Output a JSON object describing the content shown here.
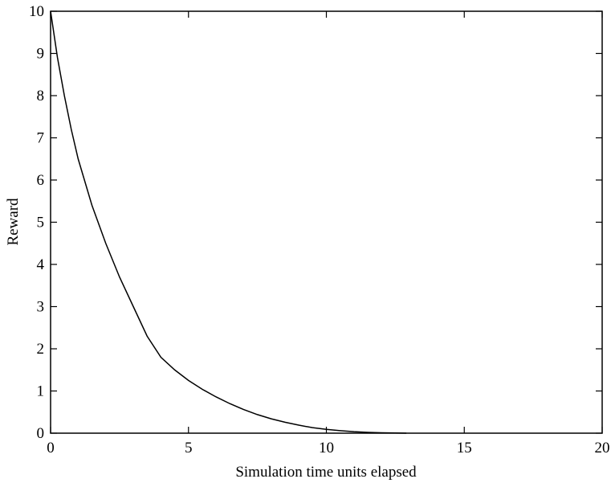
{
  "chart_data": {
    "type": "line",
    "title": "",
    "xlabel": "Simulation time units elapsed",
    "ylabel": "Reward",
    "xlim": [
      0,
      20
    ],
    "ylim": [
      0,
      10
    ],
    "xticks": [
      0,
      5,
      10,
      15,
      20
    ],
    "yticks": [
      0,
      1,
      2,
      3,
      4,
      5,
      6,
      7,
      8,
      9,
      10
    ],
    "xtick_labels": [
      "0",
      "5",
      "10",
      "15",
      "20"
    ],
    "ytick_labels": [
      "0",
      "1",
      "2",
      "3",
      "4",
      "5",
      "6",
      "7",
      "8",
      "9",
      "10"
    ],
    "grid": false,
    "legend": "none",
    "line_color": "#000000",
    "series": [
      {
        "x": [
          0,
          0.25,
          0.5,
          0.75,
          1,
          1.5,
          2,
          2.5,
          3,
          3.5,
          4,
          4.5,
          5,
          5.5,
          6,
          6.5,
          7,
          7.5,
          8,
          8.5,
          9,
          9.5,
          10,
          10.5,
          11,
          11.5,
          12,
          12.5,
          12.9
        ],
        "y": [
          10.0,
          8.9,
          8.0,
          7.2,
          6.5,
          5.4,
          4.5,
          3.7,
          3.0,
          2.3,
          1.8,
          1.5,
          1.25,
          1.04,
          0.86,
          0.7,
          0.56,
          0.44,
          0.34,
          0.26,
          0.19,
          0.13,
          0.09,
          0.06,
          0.035,
          0.02,
          0.01,
          0.004,
          0.0
        ]
      }
    ]
  }
}
